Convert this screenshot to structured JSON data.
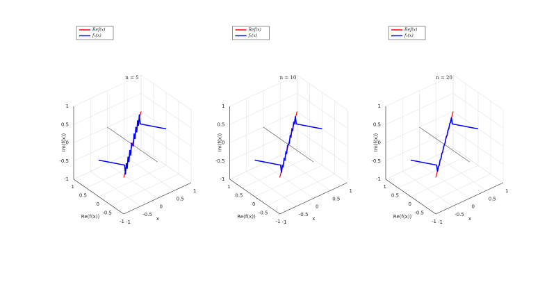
{
  "chart_data": [
    {
      "type": "line3d",
      "title": "n = 5",
      "xlabel": "x",
      "ylabel": "Re(f(x))",
      "zlabel": "Im(f(x))",
      "xlim": [
        -1,
        1
      ],
      "ylim": [
        -1,
        1
      ],
      "zlim": [
        -1,
        1
      ],
      "xticks": [
        -1,
        -0.5,
        0,
        0.5,
        1
      ],
      "yticks": [
        -1,
        -0.5,
        0,
        0.5,
        1
      ],
      "zticks": [
        -1,
        -0.5,
        0,
        0.5,
        1
      ],
      "grid": true,
      "legend_loc": "north",
      "series": [
        {
          "name": "Ref(x)",
          "color": "#ff0000",
          "x": [
            -1,
            1
          ],
          "y": [
            -1,
            1
          ],
          "z": [
            0,
            0
          ]
        },
        {
          "name": "fₙ(x)",
          "color": "#0000ff",
          "x": [
            -1,
            -0.9,
            -0.8,
            -0.7,
            -0.6,
            -0.5,
            -0.4,
            -0.3,
            -0.2,
            -0.1,
            0,
            0.1,
            0.2,
            0.3,
            0.4,
            0.5,
            0.6,
            0.7,
            0.8,
            0.9,
            1
          ],
          "y": [
            0,
            -0.9,
            -0.8,
            -0.7,
            -0.6,
            -0.5,
            -0.4,
            -0.3,
            -0.2,
            -0.1,
            0,
            0.1,
            0.2,
            0.3,
            0.4,
            0.5,
            0.6,
            0.7,
            0.8,
            0.9,
            0
          ],
          "z": [
            0,
            0.25,
            -0.1,
            0.12,
            -0.12,
            0.12,
            -0.12,
            0.12,
            -0.12,
            0.12,
            0,
            -0.12,
            0.12,
            -0.12,
            0.12,
            -0.12,
            0.12,
            -0.12,
            0.1,
            -0.25,
            0
          ]
        }
      ]
    },
    {
      "type": "line3d",
      "title": "n = 10",
      "xlabel": "x",
      "ylabel": "Re(f(x))",
      "zlabel": "Im(f(x))",
      "xlim": [
        -1,
        1
      ],
      "ylim": [
        -1,
        1
      ],
      "zlim": [
        -1,
        1
      ],
      "xticks": [
        -1,
        -0.5,
        0,
        0.5,
        1
      ],
      "yticks": [
        -1,
        -0.5,
        0,
        0.5,
        1
      ],
      "zticks": [
        -1,
        -0.5,
        0,
        0.5,
        1
      ],
      "grid": true,
      "legend_loc": "north",
      "series": [
        {
          "name": "Ref(x)",
          "color": "#ff0000",
          "x": [
            -1,
            1
          ],
          "y": [
            -1,
            1
          ],
          "z": [
            0,
            0
          ]
        },
        {
          "name": "fₙ(x)",
          "color": "#0000ff",
          "x": [
            -1,
            -0.9,
            -0.8,
            -0.7,
            -0.6,
            -0.5,
            -0.4,
            -0.3,
            -0.2,
            -0.1,
            0,
            0.1,
            0.2,
            0.3,
            0.4,
            0.5,
            0.6,
            0.7,
            0.8,
            0.9,
            1
          ],
          "y": [
            0,
            -0.9,
            -0.8,
            -0.7,
            -0.6,
            -0.5,
            -0.4,
            -0.3,
            -0.2,
            -0.1,
            0,
            0.1,
            0.2,
            0.3,
            0.4,
            0.5,
            0.6,
            0.7,
            0.8,
            0.9,
            0
          ],
          "z": [
            0,
            0.25,
            -0.05,
            0.06,
            -0.06,
            0.06,
            -0.06,
            0.06,
            -0.06,
            0.06,
            0,
            -0.06,
            0.06,
            -0.06,
            0.06,
            -0.06,
            0.06,
            -0.06,
            0.05,
            -0.25,
            0
          ]
        }
      ]
    },
    {
      "type": "line3d",
      "title": "n = 20",
      "xlabel": "x",
      "ylabel": "Re(f(x))",
      "zlabel": "Im(f(x))",
      "xlim": [
        -1,
        1
      ],
      "ylim": [
        -1,
        1
      ],
      "zlim": [
        -1,
        1
      ],
      "xticks": [
        -1,
        -0.5,
        0,
        0.5,
        1
      ],
      "yticks": [
        -1,
        -0.5,
        0,
        0.5,
        1
      ],
      "zticks": [
        -1,
        -0.5,
        0,
        0.5,
        1
      ],
      "grid": true,
      "legend_loc": "north",
      "series": [
        {
          "name": "Ref(x)",
          "color": "#ff0000",
          "x": [
            -1,
            1
          ],
          "y": [
            -1,
            1
          ],
          "z": [
            0,
            0
          ]
        },
        {
          "name": "fₙ(x)",
          "color": "#0000ff",
          "x": [
            -1,
            -0.9,
            -0.8,
            -0.7,
            -0.6,
            -0.5,
            -0.4,
            -0.3,
            -0.2,
            -0.1,
            0,
            0.1,
            0.2,
            0.3,
            0.4,
            0.5,
            0.6,
            0.7,
            0.8,
            0.9,
            1
          ],
          "y": [
            0,
            -0.9,
            -0.8,
            -0.7,
            -0.6,
            -0.5,
            -0.4,
            -0.3,
            -0.2,
            -0.1,
            0,
            0.1,
            0.2,
            0.3,
            0.4,
            0.5,
            0.6,
            0.7,
            0.8,
            0.9,
            0
          ],
          "z": [
            0,
            0.25,
            -0.02,
            0.03,
            -0.03,
            0.03,
            -0.03,
            0.03,
            -0.03,
            0.03,
            0,
            -0.03,
            0.03,
            -0.03,
            0.03,
            -0.03,
            0.03,
            -0.03,
            0.02,
            -0.25,
            0
          ]
        }
      ]
    }
  ]
}
